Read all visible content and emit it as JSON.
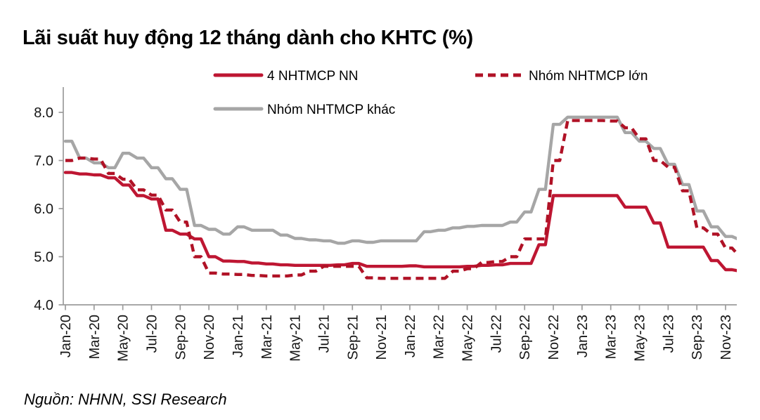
{
  "chart": {
    "title": "Lãi suất huy động 12 tháng dành cho KHTC (%)",
    "source": "Nguồn: NHNN, SSI Research",
    "colors": {
      "solid_red": "#BE1632",
      "dashed_red": "#B01226",
      "gray": "#A6A6A6",
      "axis": "#9B9B9B",
      "tick_text": "#161616"
    }
  },
  "chart_data": {
    "type": "line",
    "title": "Lãi suất huy động 12 tháng dành cho KHTC (%)",
    "xlabel": "",
    "ylabel": "",
    "ylim": [
      4.0,
      8.0
    ],
    "y_ticks": [
      4.0,
      5.0,
      6.0,
      7.0,
      8.0
    ],
    "y_tick_labels": [
      "4.0",
      "5.0",
      "6.0",
      "7.0",
      "8.0"
    ],
    "grid": false,
    "legend_position": "top-center",
    "x": [
      "Jan-20",
      "Feb-20",
      "Mar-20",
      "Apr-20",
      "May-20",
      "Jun-20",
      "Jul-20",
      "Aug-20",
      "Sep-20",
      "Oct-20",
      "Nov-20",
      "Dec-20",
      "Jan-21",
      "Feb-21",
      "Mar-21",
      "Apr-21",
      "May-21",
      "Jun-21",
      "Jul-21",
      "Aug-21",
      "Sep-21",
      "Oct-21",
      "Nov-21",
      "Dec-21",
      "Jan-22",
      "Feb-22",
      "Mar-22",
      "Apr-22",
      "May-22",
      "Jun-22",
      "Jul-22",
      "Aug-22",
      "Sep-22",
      "Oct-22",
      "Nov-22",
      "Dec-22",
      "Jan-23",
      "Feb-23",
      "Mar-23",
      "Apr-23",
      "May-23",
      "Jun-23",
      "Jul-23",
      "Aug-23",
      "Sep-23",
      "Oct-23",
      "Nov-23",
      "Dec-23"
    ],
    "x_tick_labels": [
      "Jan-20",
      "Mar-20",
      "May-20",
      "Jul-20",
      "Sep-20",
      "Nov-20",
      "Jan-21",
      "Mar-21",
      "May-21",
      "Jul-21",
      "Sep-21",
      "Nov-21",
      "Jan-22",
      "Mar-22",
      "May-22",
      "Jul-22",
      "Sep-22",
      "Nov-22",
      "Jan-23",
      "Mar-23",
      "May-23",
      "Jul-23",
      "Sep-23",
      "Nov-23"
    ],
    "series": [
      {
        "name": "4 NHTMCP NN",
        "style": "solid",
        "color": "#BE1632",
        "values": [
          6.75,
          6.72,
          6.7,
          6.64,
          6.49,
          6.27,
          6.2,
          5.55,
          5.47,
          5.37,
          5.0,
          4.91,
          4.9,
          4.87,
          4.85,
          4.83,
          4.82,
          4.82,
          4.82,
          4.83,
          4.86,
          4.8,
          4.8,
          4.8,
          4.81,
          4.79,
          4.79,
          4.79,
          4.8,
          4.82,
          4.83,
          4.86,
          4.86,
          5.25,
          6.27,
          6.27,
          6.27,
          6.27,
          6.27,
          6.03,
          6.03,
          5.7,
          5.2,
          5.2,
          5.2,
          4.92,
          4.73,
          4.7
        ]
      },
      {
        "name": "Nhóm NHTMCP lớn",
        "style": "dashed",
        "color": "#B01226",
        "values": [
          7.0,
          7.05,
          7.03,
          6.73,
          6.61,
          6.39,
          6.28,
          5.97,
          5.72,
          5.0,
          4.66,
          4.64,
          4.63,
          4.61,
          4.6,
          4.6,
          4.62,
          4.7,
          4.8,
          4.8,
          4.8,
          4.56,
          4.55,
          4.55,
          4.55,
          4.55,
          4.55,
          4.7,
          4.75,
          4.88,
          4.9,
          5.0,
          5.37,
          5.37,
          7.0,
          7.83,
          7.83,
          7.83,
          7.82,
          7.68,
          7.45,
          7.0,
          6.86,
          6.37,
          5.6,
          5.47,
          5.18,
          5.0
        ]
      },
      {
        "name": "Nhóm NHTMCP khác",
        "style": "solid",
        "color": "#A6A6A6",
        "values": [
          7.4,
          7.05,
          6.95,
          6.85,
          7.15,
          7.05,
          6.85,
          6.62,
          6.4,
          5.65,
          5.57,
          5.47,
          5.62,
          5.55,
          5.55,
          5.45,
          5.38,
          5.35,
          5.33,
          5.28,
          5.33,
          5.3,
          5.33,
          5.33,
          5.33,
          5.52,
          5.55,
          5.6,
          5.63,
          5.65,
          5.65,
          5.72,
          5.93,
          6.4,
          7.75,
          7.9,
          7.9,
          7.9,
          7.9,
          7.58,
          7.4,
          7.25,
          6.92,
          6.5,
          5.95,
          5.62,
          5.42,
          5.35
        ]
      }
    ]
  }
}
